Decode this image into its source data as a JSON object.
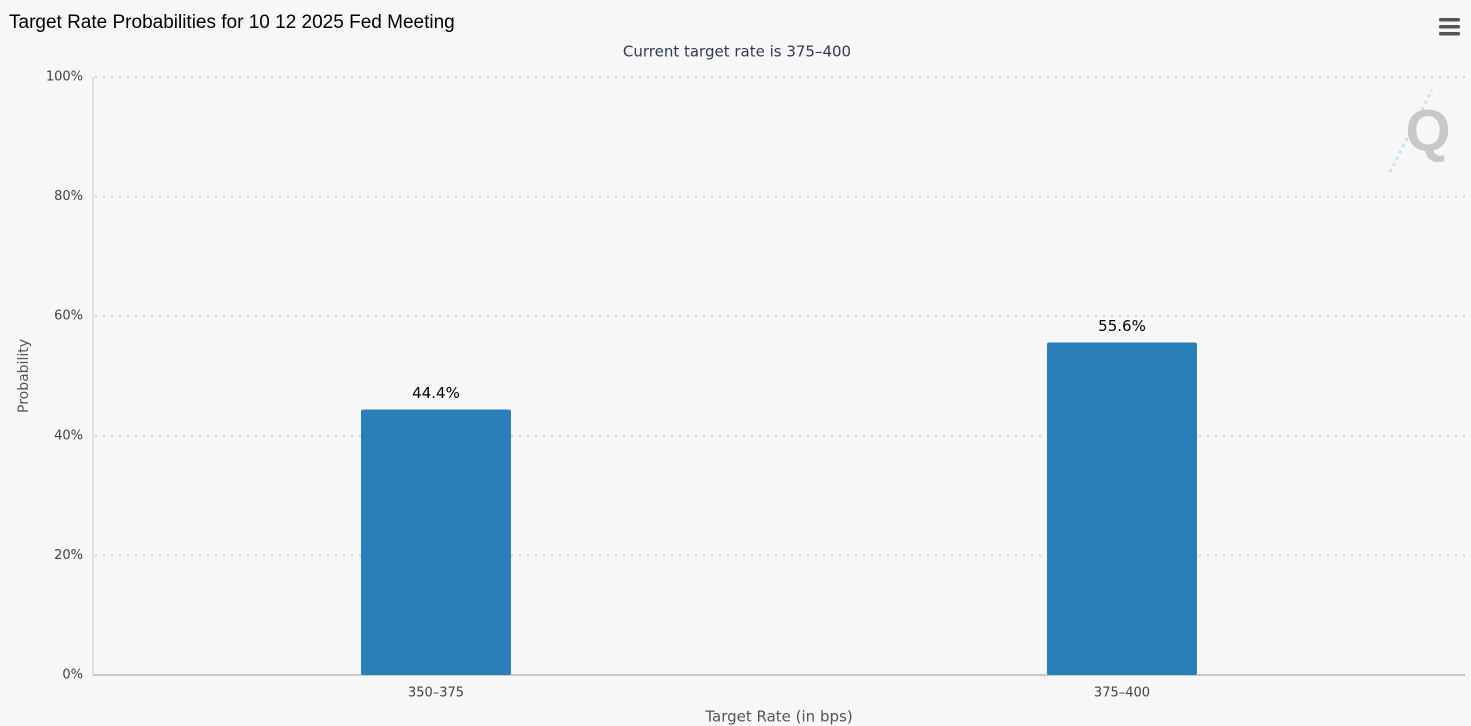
{
  "chart_data": {
    "type": "bar",
    "title": "Target Rate Probabilities for 10 12 2025 Fed Meeting",
    "subtitle": "Current target rate is 375–400",
    "x_label": "Target Rate (in bps)",
    "y_label": "Probability",
    "categories": [
      "350–375",
      "375–400"
    ],
    "values": [
      44.4,
      55.6
    ],
    "value_labels": [
      "44.4%",
      "55.6%"
    ],
    "color": "#2a7fb8",
    "ylim": [
      0,
      100
    ],
    "yticks": [
      {
        "value": 0,
        "label": "0%"
      },
      {
        "value": 20,
        "label": "20%"
      },
      {
        "value": 40,
        "label": "40%"
      },
      {
        "value": 60,
        "label": "60%"
      },
      {
        "value": 80,
        "label": "80%"
      },
      {
        "value": 100,
        "label": "100%"
      }
    ],
    "grid": true
  }
}
